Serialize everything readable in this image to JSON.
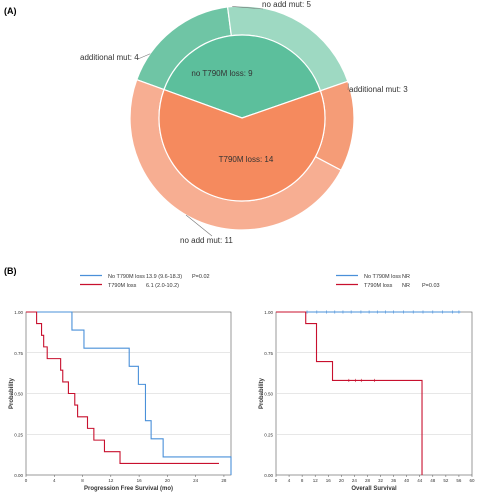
{
  "panel_a_label": "(A)",
  "panel_b_label": "(B)",
  "chart_data": [
    {
      "type": "pie",
      "subtype": "nested-donut",
      "inner": [
        {
          "label": "no T790M loss: 9",
          "value": 9,
          "color": "#5cbf9c"
        },
        {
          "label": "T790M loss: 14",
          "value": 14,
          "color": "#f58a5e"
        }
      ],
      "outer": [
        {
          "label": "additional mut: 4",
          "value": 4,
          "color": "#6fc5a5"
        },
        {
          "label": "no add mut: 5",
          "value": 5,
          "color": "#9ed9c2"
        },
        {
          "label": "additional mut: 3",
          "value": 3,
          "color": "#f59c77"
        },
        {
          "label": "no add mut: 11",
          "value": 11,
          "color": "#f7ae92"
        }
      ]
    },
    {
      "type": "line",
      "subtype": "kaplan-meier",
      "xlabel": "Progression Free Survival (mo)",
      "ylabel": "Probability",
      "xlim": [
        0,
        29
      ],
      "ylim": [
        0,
        1
      ],
      "xticks": [
        0,
        4,
        8,
        12,
        16,
        20,
        24,
        28
      ],
      "yticks": [
        "0.00",
        "0.25",
        "0.50",
        "0.75",
        "1.00"
      ],
      "legend": [
        {
          "name": "No T790M loss",
          "stat": "13.9 (9.6-18.3)",
          "p": "P=0.02",
          "color": "#4a90d9"
        },
        {
          "name": "T790M loss",
          "stat": "6.1 (2.0-10.2)",
          "p": "",
          "color": "#c8102e"
        }
      ],
      "series": [
        {
          "name": "No T790M loss",
          "color": "#4a90d9",
          "steps": [
            [
              0,
              1.0
            ],
            [
              6.5,
              0.889
            ],
            [
              8.2,
              0.778
            ],
            [
              14.6,
              0.667
            ],
            [
              15.9,
              0.556
            ],
            [
              16.9,
              0.333
            ],
            [
              17.7,
              0.222
            ],
            [
              19.4,
              0.111
            ],
            [
              29.0,
              0.0
            ]
          ],
          "end": 29.0
        },
        {
          "name": "T790M loss",
          "color": "#c8102e",
          "steps": [
            [
              0,
              1.0
            ],
            [
              1.5,
              0.929
            ],
            [
              2.2,
              0.857
            ],
            [
              2.5,
              0.786
            ],
            [
              3.0,
              0.714
            ],
            [
              4.9,
              0.643
            ],
            [
              5.2,
              0.571
            ],
            [
              6.0,
              0.5
            ],
            [
              6.9,
              0.429
            ],
            [
              7.3,
              0.357
            ],
            [
              8.7,
              0.286
            ],
            [
              9.6,
              0.214
            ],
            [
              11.1,
              0.143
            ],
            [
              13.3,
              0.071
            ]
          ],
          "end": 27.3
        }
      ]
    },
    {
      "type": "line",
      "subtype": "kaplan-meier",
      "xlabel": "Overall Survival",
      "ylabel": "Probability",
      "xlim": [
        0,
        60
      ],
      "ylim": [
        0,
        1
      ],
      "xticks": [
        0,
        4,
        8,
        12,
        16,
        20,
        24,
        28,
        32,
        36,
        40,
        44,
        48,
        52,
        56,
        60
      ],
      "yticks": [
        "0.00",
        "0.25",
        "0.50",
        "0.75",
        "1.00"
      ],
      "legend": [
        {
          "name": "No T790M loss",
          "stat": "NR",
          "p": "",
          "color": "#4a90d9"
        },
        {
          "name": "T790M loss",
          "stat": "NR",
          "p": "P=0.03",
          "color": "#c8102e"
        }
      ],
      "series": [
        {
          "name": "No T790M loss",
          "color": "#4a90d9",
          "steps": [
            [
              0,
              1.0
            ]
          ],
          "end": 56.5,
          "censor": [
            9.5,
            12.5,
            15.5,
            18,
            20.5,
            23,
            26,
            28.5,
            31,
            33.5,
            36,
            39,
            42,
            45,
            48,
            51,
            54,
            56
          ]
        },
        {
          "name": "T790M loss",
          "color": "#c8102e",
          "steps": [
            [
              0,
              1.0
            ],
            [
              9.1,
              0.929
            ],
            [
              12.4,
              0.696
            ],
            [
              17.3,
              0.58
            ],
            [
              44.7,
              0.0
            ]
          ],
          "end": 44.7,
          "censor": [
            22.3,
            24.4,
            26.1,
            30.2
          ]
        }
      ]
    }
  ]
}
